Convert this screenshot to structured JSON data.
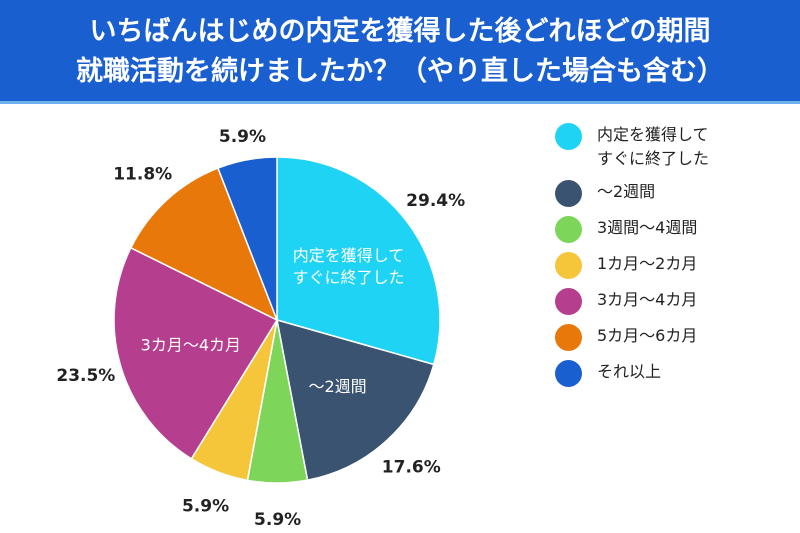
{
  "chart_data": {
    "type": "pie",
    "title_lines": [
      "いちばんはじめの内定を獲得した後どれほどの期間",
      "就職活動を続けましたか？（やり直した場合も含む）"
    ],
    "start": "top",
    "direction": "clockwise",
    "categories": [
      "内定を獲得して\nすぐに終了した",
      "～2週間",
      "3週間～4週間",
      "1カ月～2カ月",
      "3カ月～4カ月",
      "5カ月～6カ月",
      "それ以上"
    ],
    "values": [
      29.4,
      17.6,
      5.9,
      5.9,
      23.5,
      11.8,
      5.9
    ],
    "data_labels": [
      "29.4%",
      "17.6%",
      "5.9%",
      "5.9%",
      "23.5%",
      "11.8%",
      "5.9%"
    ],
    "inner_labels": [
      "内定を獲得して\nすぐに終了した",
      "～2週間",
      "",
      "",
      "3カ月～4カ月",
      "",
      ""
    ],
    "colors": [
      "#1fd3f5",
      "#3a5370",
      "#7dd65a",
      "#f5c63a",
      "#b53f8e",
      "#e8780a",
      "#1a5fd0"
    ],
    "legend": "right"
  }
}
